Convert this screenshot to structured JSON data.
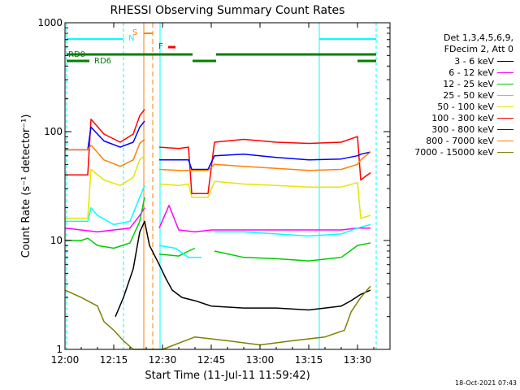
{
  "chart_data": {
    "type": "line",
    "title": "RHESSI Observing Summary Count Rates",
    "xlabel": "Start Time (11-Jul-11 11:59:42)",
    "ylabel": "Count Rate (s⁻¹ detector⁻¹)",
    "y_scale": "log",
    "ylim": [
      1,
      1000
    ],
    "xlim_minutes": [
      0,
      100
    ],
    "x_ticks": [
      {
        "minute": 0,
        "label": "12:00"
      },
      {
        "minute": 15,
        "label": "12:15"
      },
      {
        "minute": 30,
        "label": "12:30"
      },
      {
        "minute": 45,
        "label": "12:45"
      },
      {
        "minute": 60,
        "label": "13:00"
      },
      {
        "minute": 75,
        "label": "13:15"
      },
      {
        "minute": 90,
        "label": "13:30"
      }
    ],
    "y_ticks": [
      {
        "value": 1,
        "label": "1"
      },
      {
        "value": 10,
        "label": "10"
      },
      {
        "value": 100,
        "label": "100"
      },
      {
        "value": 1000,
        "label": "1000"
      }
    ],
    "legend_header": [
      "Det 1,3,4,5,6,9,",
      "FDecim 2, Att 0"
    ],
    "legend_position": "right",
    "series": [
      {
        "name": "3 - 6 keV",
        "color": "#000000",
        "points": [
          [
            0,
            null
          ],
          [
            15.5,
            2
          ],
          [
            18,
            3
          ],
          [
            21,
            5.5
          ],
          [
            23,
            12
          ],
          [
            24.5,
            15
          ],
          [
            26,
            9
          ],
          [
            29,
            6
          ],
          [
            31,
            4.5
          ],
          [
            33,
            3.5
          ],
          [
            36,
            3
          ],
          [
            40,
            2.8
          ],
          [
            45,
            2.5
          ],
          [
            55,
            2.4
          ],
          [
            65,
            2.4
          ],
          [
            75,
            2.3
          ],
          [
            85,
            2.5
          ],
          [
            88,
            2.8
          ],
          [
            91,
            3.2
          ],
          [
            94,
            3.5
          ]
        ]
      },
      {
        "name": "6 - 12 keV",
        "color": "#ff00ff",
        "points": [
          [
            0,
            13
          ],
          [
            5,
            12.5
          ],
          [
            10,
            12
          ],
          [
            15,
            12.5
          ],
          [
            20,
            13
          ],
          [
            23,
            17
          ],
          [
            24.5,
            20
          ],
          [
            26,
            null
          ],
          [
            29,
            13
          ],
          [
            32,
            21
          ],
          [
            35,
            12.5
          ],
          [
            40,
            12
          ],
          [
            45,
            12.5
          ],
          [
            55,
            12.5
          ],
          [
            65,
            12.5
          ],
          [
            75,
            12.5
          ],
          [
            85,
            12.5
          ],
          [
            90,
            13
          ],
          [
            94,
            13
          ]
        ]
      },
      {
        "name": "12 - 25 keV",
        "color": "#00cc00",
        "points": [
          [
            0,
            10
          ],
          [
            5,
            10
          ],
          [
            7,
            10.5
          ],
          [
            10,
            9
          ],
          [
            15,
            8.5
          ],
          [
            20,
            9.5
          ],
          [
            23,
            15
          ],
          [
            24.5,
            25
          ],
          [
            26,
            null
          ],
          [
            29,
            7.5
          ],
          [
            35,
            7.2
          ],
          [
            38,
            8
          ],
          [
            40,
            8.5
          ],
          [
            44,
            null
          ],
          [
            46,
            8
          ],
          [
            55,
            7
          ],
          [
            65,
            6.8
          ],
          [
            75,
            6.5
          ],
          [
            85,
            7
          ],
          [
            90,
            9
          ],
          [
            94,
            9.5
          ]
        ]
      },
      {
        "name": "25 - 50 keV",
        "color": "#00ffff",
        "points": [
          [
            0,
            15
          ],
          [
            7,
            15
          ],
          [
            8,
            20
          ],
          [
            10,
            17
          ],
          [
            15,
            14
          ],
          [
            20,
            15
          ],
          [
            23,
            25
          ],
          [
            24.5,
            32
          ],
          [
            26,
            null
          ],
          [
            29,
            9
          ],
          [
            34,
            8.5
          ],
          [
            38,
            7
          ],
          [
            42,
            7
          ],
          [
            44,
            null
          ],
          [
            46,
            12
          ],
          [
            55,
            12
          ],
          [
            65,
            11.5
          ],
          [
            75,
            11
          ],
          [
            85,
            11.5
          ],
          [
            90,
            13
          ],
          [
            94,
            14
          ]
        ]
      },
      {
        "name": "50 - 100 keV",
        "color": "#e6e600",
        "points": [
          [
            0,
            16
          ],
          [
            7,
            16
          ],
          [
            8,
            45
          ],
          [
            12,
            36
          ],
          [
            17,
            32
          ],
          [
            21,
            38
          ],
          [
            23,
            55
          ],
          [
            24.5,
            60
          ],
          [
            26,
            null
          ],
          [
            29,
            33
          ],
          [
            35,
            32
          ],
          [
            38,
            33
          ],
          [
            39,
            25
          ],
          [
            44,
            25
          ],
          [
            46,
            35
          ],
          [
            55,
            33
          ],
          [
            65,
            32
          ],
          [
            75,
            31
          ],
          [
            85,
            31
          ],
          [
            90,
            34
          ],
          [
            91,
            16
          ],
          [
            94,
            17
          ]
        ]
      },
      {
        "name": "100 - 300 keV",
        "color": "#ff0000",
        "points": [
          [
            0,
            40
          ],
          [
            7,
            40
          ],
          [
            8,
            130
          ],
          [
            12,
            95
          ],
          [
            17,
            80
          ],
          [
            21,
            95
          ],
          [
            23,
            140
          ],
          [
            24.5,
            160
          ],
          [
            26,
            null
          ],
          [
            29,
            72
          ],
          [
            35,
            70
          ],
          [
            38,
            72
          ],
          [
            39,
            27
          ],
          [
            44,
            27
          ],
          [
            46,
            80
          ],
          [
            55,
            85
          ],
          [
            65,
            80
          ],
          [
            75,
            78
          ],
          [
            85,
            80
          ],
          [
            90,
            90
          ],
          [
            91,
            36
          ],
          [
            94,
            42
          ]
        ]
      },
      {
        "name": "300 - 800 keV",
        "color": "#0000ff",
        "points": [
          [
            0,
            68
          ],
          [
            7,
            68
          ],
          [
            8,
            110
          ],
          [
            12,
            82
          ],
          [
            17,
            72
          ],
          [
            21,
            80
          ],
          [
            23,
            110
          ],
          [
            24.5,
            125
          ],
          [
            26,
            null
          ],
          [
            29,
            55
          ],
          [
            35,
            55
          ],
          [
            38,
            55
          ],
          [
            39,
            45
          ],
          [
            44,
            45
          ],
          [
            46,
            60
          ],
          [
            55,
            62
          ],
          [
            65,
            58
          ],
          [
            75,
            55
          ],
          [
            85,
            56
          ],
          [
            90,
            60
          ],
          [
            91,
            62
          ],
          [
            94,
            65
          ]
        ]
      },
      {
        "name": "800 - 7000 keV",
        "color": "#ff8000",
        "points": [
          [
            0,
            68
          ],
          [
            7,
            68
          ],
          [
            8,
            75
          ],
          [
            12,
            55
          ],
          [
            17,
            48
          ],
          [
            21,
            55
          ],
          [
            23,
            78
          ],
          [
            24.5,
            85
          ],
          [
            26,
            null
          ],
          [
            29,
            45
          ],
          [
            35,
            44
          ],
          [
            38,
            44
          ],
          [
            39,
            44
          ],
          [
            44,
            44
          ],
          [
            46,
            50
          ],
          [
            55,
            48
          ],
          [
            65,
            46
          ],
          [
            75,
            44
          ],
          [
            85,
            45
          ],
          [
            90,
            50
          ],
          [
            91,
            55
          ],
          [
            94,
            65
          ]
        ]
      },
      {
        "name": "7000 - 15000 keV",
        "color": "#808000",
        "points": [
          [
            0,
            3.5
          ],
          [
            5,
            3
          ],
          [
            10,
            2.5
          ],
          [
            12,
            1.8
          ],
          [
            15,
            1.5
          ],
          [
            18,
            1.2
          ],
          [
            21,
            1
          ],
          [
            30,
            1
          ],
          [
            40,
            1.3
          ],
          [
            50,
            1.2
          ],
          [
            60,
            1.1
          ],
          [
            70,
            1.2
          ],
          [
            80,
            1.3
          ],
          [
            86,
            1.5
          ],
          [
            88,
            2.2
          ],
          [
            91,
            3
          ],
          [
            94,
            3.8
          ]
        ]
      }
    ],
    "annotations": {
      "markers": [
        {
          "text": "N",
          "minute": 20,
          "color": "#00ffff"
        },
        {
          "text": "S",
          "minute": 22,
          "color": "#ff8000"
        },
        {
          "text": "F",
          "minute": 30,
          "color": "#ff0000"
        }
      ],
      "state_labels": [
        {
          "text": "RD0",
          "color": "#008000"
        },
        {
          "text": "RD6",
          "color": "#008000"
        }
      ]
    }
  },
  "date_stamp": "18-Oct-2021 07:43"
}
